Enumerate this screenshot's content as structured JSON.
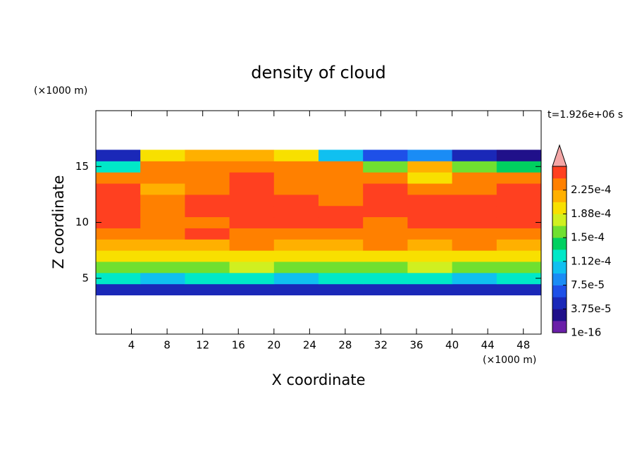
{
  "chart_data": {
    "type": "contour",
    "title": "density of cloud",
    "x_label": "X coordinate",
    "y_label": "Z coordinate",
    "x_unit": "(×1000 m)",
    "y_unit": "(×1000 m)",
    "time_label": "t=1.926e+06 s",
    "xlim": [
      0,
      50
    ],
    "ylim": [
      0,
      20
    ],
    "xticks": [
      4,
      8,
      12,
      16,
      20,
      24,
      28,
      32,
      36,
      40,
      44,
      48
    ],
    "yticks": [
      5,
      10,
      15
    ],
    "x": [
      2.5,
      7.5,
      12.5,
      17.5,
      22.5,
      27.5,
      32.5,
      37.5,
      42.5,
      47.5
    ],
    "y": [
      4,
      5,
      6,
      7,
      8,
      9,
      10,
      11,
      12,
      13,
      14,
      15,
      16
    ],
    "z": [
      [
        4.5e-05,
        5e-05,
        5e-05,
        4.5e-05,
        5e-05,
        4.5e-05,
        5e-05,
        5e-05,
        5e-05,
        5e-05
      ],
      [
        0.00012,
        0.00011,
        0.00012,
        0.00012,
        0.00011,
        0.00012,
        0.00012,
        0.00012,
        0.00011,
        0.00012
      ],
      [
        0.000165,
        0.00016,
        0.000165,
        0.00017,
        0.00016,
        0.000165,
        0.00016,
        0.00017,
        0.000165,
        0.00016
      ],
      [
        0.000195,
        0.00019,
        0.0002,
        0.000195,
        0.00019,
        0.0002,
        0.000195,
        0.00019,
        0.0002,
        0.000195
      ],
      [
        0.00022,
        0.000215,
        0.00022,
        0.00023,
        0.00022,
        0.000215,
        0.00023,
        0.00022,
        0.000225,
        0.00022
      ],
      [
        0.000235,
        0.00023,
        0.000245,
        0.00024,
        0.000235,
        0.00024,
        0.00023,
        0.000235,
        0.00024,
        0.000235
      ],
      [
        0.000245,
        0.00024,
        0.00023,
        0.000245,
        0.00025,
        0.000245,
        0.00023,
        0.00025,
        0.000245,
        0.000245
      ],
      [
        0.00025,
        0.00024,
        0.000245,
        0.00025,
        0.00025,
        0.000245,
        0.00025,
        0.00025,
        0.000245,
        0.00025
      ],
      [
        0.00025,
        0.00023,
        0.000245,
        0.00025,
        0.00025,
        0.00023,
        0.000245,
        0.000245,
        0.00025,
        0.00025
      ],
      [
        0.000245,
        0.00022,
        0.00024,
        0.000245,
        0.00024,
        0.00024,
        0.000245,
        0.00023,
        0.00024,
        0.000245
      ],
      [
        0.00023,
        0.00023,
        0.00024,
        0.000245,
        0.00024,
        0.00023,
        0.00024,
        0.00019,
        0.00023,
        0.00023
      ],
      [
        0.00013,
        0.00023,
        0.00024,
        0.00024,
        0.000235,
        0.00023,
        0.00016,
        0.00022,
        0.00015,
        0.00014
      ],
      [
        4e-05,
        0.00019,
        0.00022,
        0.00022,
        0.00019,
        0.0001,
        6e-05,
        8e-05,
        5e-05,
        3e-05
      ]
    ],
    "levels": [
      1e-16,
      1.875e-05,
      3.75e-05,
      5.625e-05,
      7.5e-05,
      9.375e-05,
      0.0001125,
      0.00013125,
      0.00015,
      0.00016875,
      0.0001875,
      0.00020625,
      0.000225,
      0.00024375,
      0.0002625
    ],
    "colors": [
      "#6a1fa8",
      "#20108a",
      "#1a28b8",
      "#1e50e8",
      "#1a8cf5",
      "#10c0f0",
      "#00e8c8",
      "#00d060",
      "#70e030",
      "#d0f020",
      "#f8e000",
      "#ffb000",
      "#ff8000",
      "#ff4020"
    ],
    "extend_color": "#f4a6a6",
    "colorbar_ticks": [
      {
        "value": 1e-16,
        "label": "1e-16"
      },
      {
        "value": 3.75e-05,
        "label": "3.75e-5"
      },
      {
        "value": 7.5e-05,
        "label": "7.5e-5"
      },
      {
        "value": 0.0001125,
        "label": "1.12e-4"
      },
      {
        "value": 0.00015,
        "label": "1.5e-4"
      },
      {
        "value": 0.0001875,
        "label": "1.88e-4"
      },
      {
        "value": 0.000225,
        "label": "2.25e-4"
      }
    ]
  }
}
